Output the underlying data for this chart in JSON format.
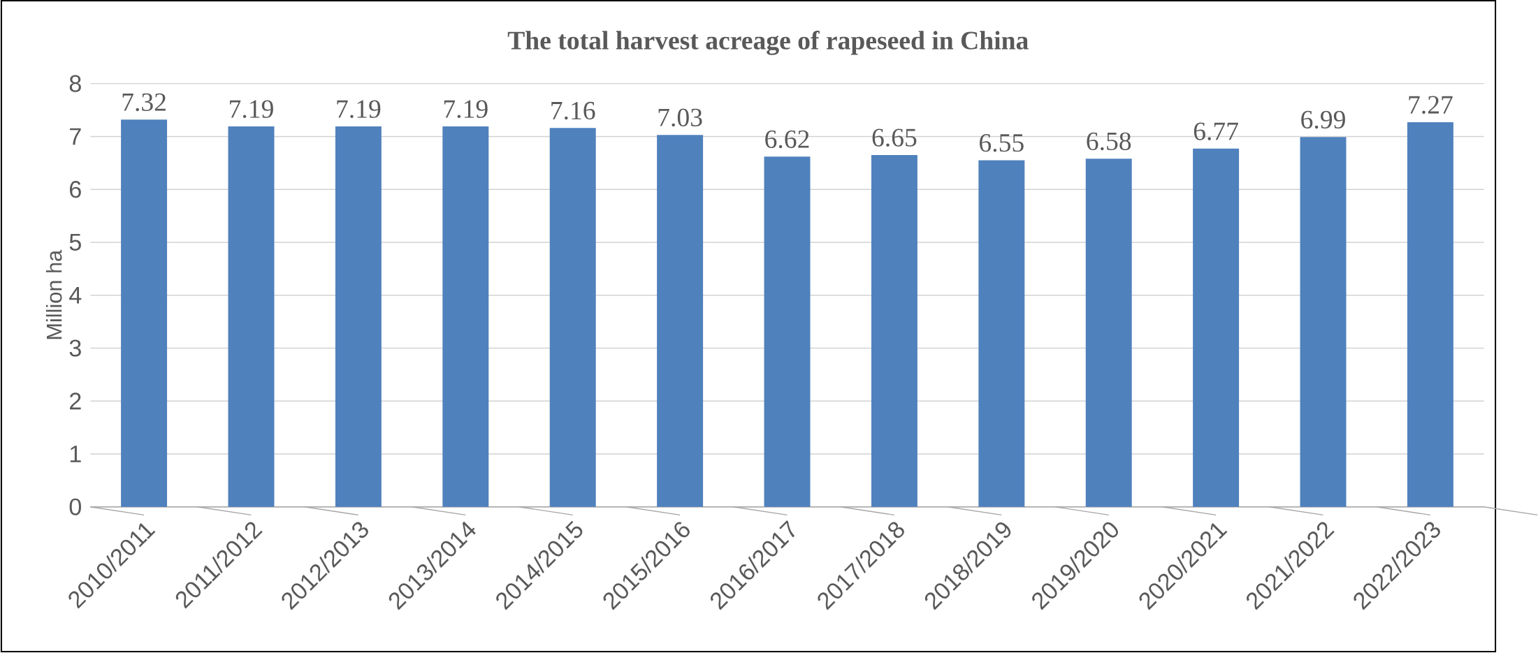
{
  "chart_data": {
    "type": "bar",
    "title": "The total harvest acreage of rapeseed in China",
    "ylabel": "Million ha",
    "categories": [
      "2010/2011",
      "2011/2012",
      "2012/2013",
      "2013/2014",
      "2014/2015",
      "2015/2016",
      "2016/2017",
      "2017/2018",
      "2018/2019",
      "2019/2020",
      "2020/2021",
      "2021/2022",
      "2022/2023"
    ],
    "values": [
      7.32,
      7.19,
      7.19,
      7.19,
      7.16,
      7.03,
      6.62,
      6.65,
      6.55,
      6.58,
      6.77,
      6.99,
      7.27
    ],
    "color": "#4f81bd",
    "ylim": [
      0,
      8
    ],
    "yticks": [
      0,
      1,
      2,
      3,
      4,
      5,
      6,
      7,
      8
    ],
    "grid": "y",
    "data_labels": true
  }
}
